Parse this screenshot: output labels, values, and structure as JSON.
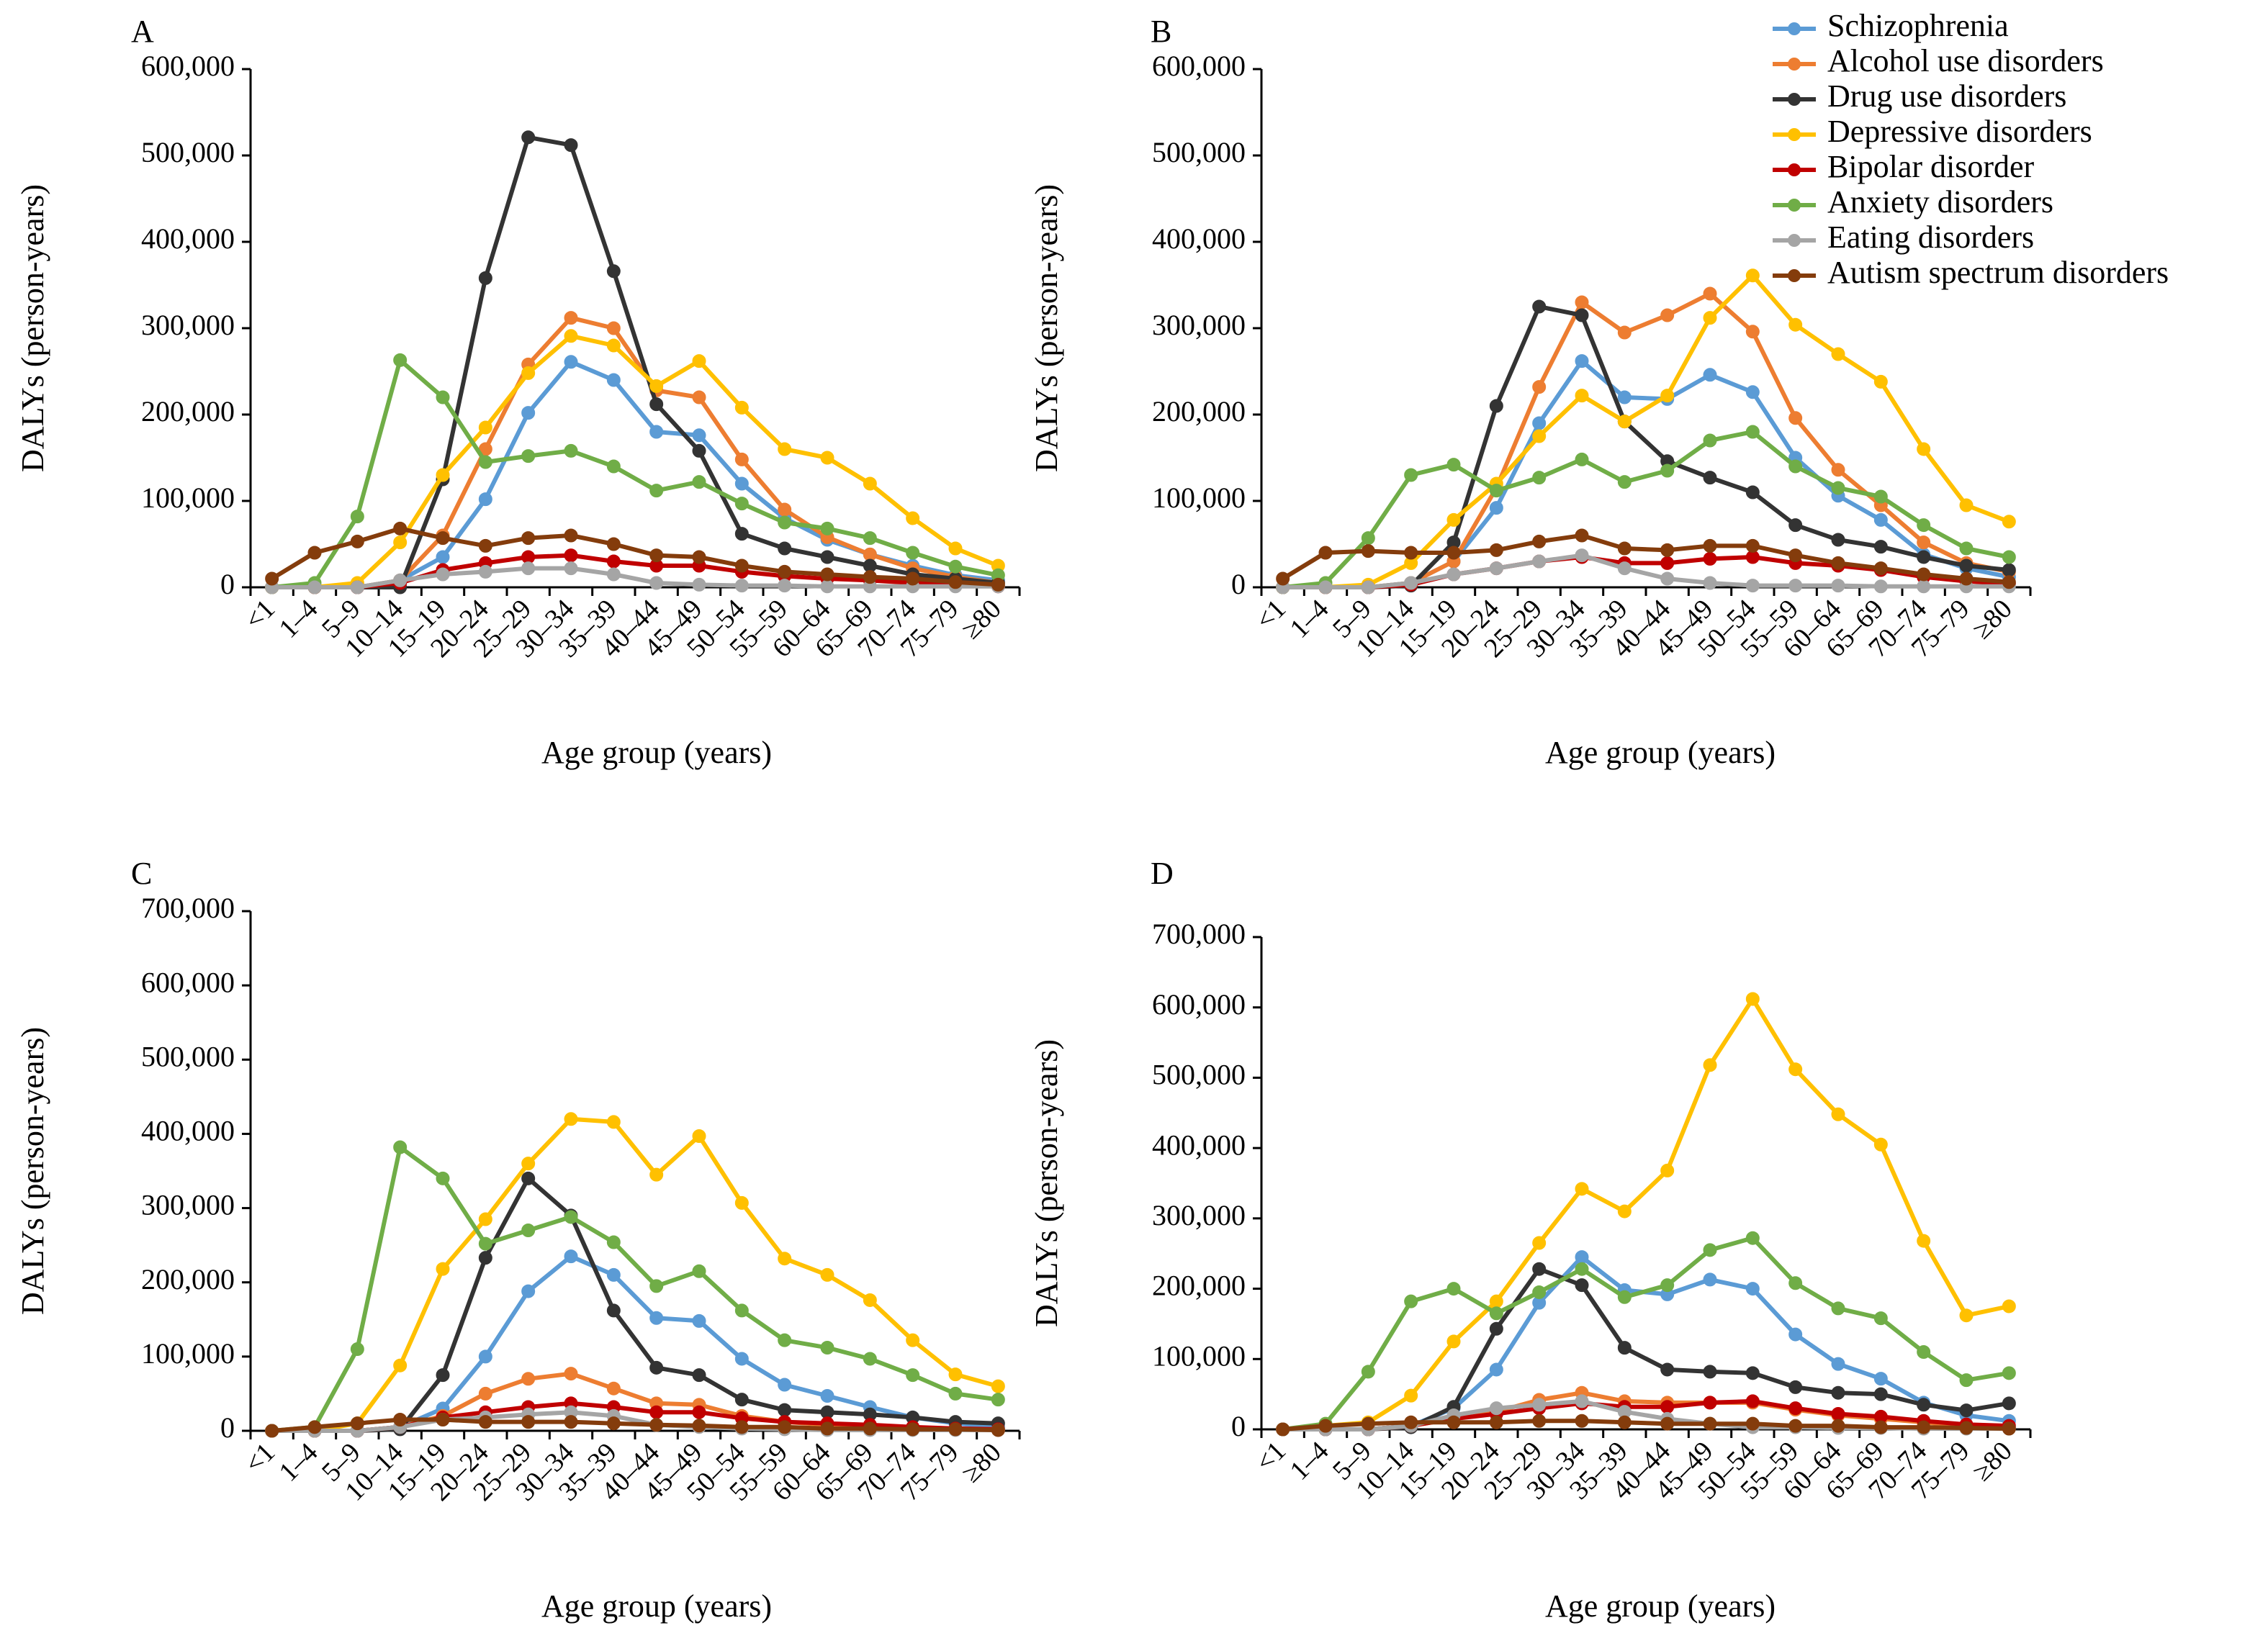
{
  "chart_data": [
    {
      "type": "line",
      "panel_label": "A",
      "xlabel": "Age group (years)",
      "ylabel": "DALYs (person-years)",
      "ylim": [
        0,
        600000
      ],
      "yticks": [
        0,
        100000,
        200000,
        300000,
        400000,
        500000,
        600000
      ],
      "ytick_labels": [
        "0",
        "100,000",
        "200,000",
        "300,000",
        "400,000",
        "500,000",
        "600,000"
      ],
      "categories": [
        "<1",
        "1–4",
        "5–9",
        "10–14",
        "15–19",
        "20–24",
        "25–29",
        "30–34",
        "35–39",
        "40–44",
        "45–49",
        "50–54",
        "55–59",
        "60–64",
        "65–69",
        "70–74",
        "75–79",
        "≥80"
      ],
      "grid": false,
      "series": [
        {
          "name": "Schizophrenia",
          "color": "#5b9bd5",
          "values": [
            0,
            0,
            0,
            8000,
            35000,
            102000,
            202000,
            261000,
            240000,
            180000,
            176000,
            120000,
            80000,
            55000,
            38000,
            25000,
            14000,
            8000
          ]
        },
        {
          "name": "Alcohol use disorders",
          "color": "#ed7d31",
          "values": [
            0,
            0,
            0,
            8000,
            60000,
            160000,
            258000,
            312000,
            300000,
            228000,
            220000,
            148000,
            90000,
            58000,
            38000,
            22000,
            12000,
            5000
          ]
        },
        {
          "name": "Drug use disorders",
          "color": "#333333",
          "values": [
            0,
            0,
            0,
            0,
            125000,
            358000,
            521000,
            512000,
            366000,
            212000,
            158000,
            62000,
            45000,
            35000,
            25000,
            15000,
            10000,
            5000
          ]
        },
        {
          "name": "Depressive disorders",
          "color": "#ffc000",
          "values": [
            0,
            0,
            5000,
            52000,
            130000,
            185000,
            248000,
            291000,
            280000,
            233000,
            262000,
            208000,
            160000,
            150000,
            120000,
            80000,
            45000,
            25000
          ]
        },
        {
          "name": "Bipolar disorder",
          "color": "#c00000",
          "values": [
            0,
            0,
            0,
            5000,
            20000,
            28000,
            35000,
            37000,
            30000,
            25000,
            25000,
            18000,
            13000,
            10000,
            8000,
            5000,
            3000,
            1000
          ]
        },
        {
          "name": "Anxiety disorders",
          "color": "#70ad47",
          "values": [
            0,
            5000,
            82000,
            263000,
            220000,
            145000,
            152000,
            158000,
            140000,
            112000,
            122000,
            97000,
            75000,
            68000,
            57000,
            40000,
            24000,
            14000
          ]
        },
        {
          "name": "Eating disorders",
          "color": "#a5a5a5",
          "values": [
            0,
            0,
            0,
            8000,
            15000,
            18000,
            22000,
            22000,
            15000,
            5000,
            3000,
            2000,
            2000,
            1000,
            1000,
            1000,
            1000,
            1000
          ]
        },
        {
          "name": "Autism spectrum disorders",
          "color": "#843c0c",
          "values": [
            10000,
            40000,
            53000,
            68000,
            57000,
            48000,
            57000,
            60000,
            50000,
            37000,
            35000,
            25000,
            18000,
            15000,
            12000,
            10000,
            6000,
            3000
          ]
        }
      ]
    },
    {
      "type": "line",
      "panel_label": "B",
      "xlabel": "Age group (years)",
      "ylabel": "DALYs (person-years)",
      "ylim": [
        0,
        600000
      ],
      "yticks": [
        0,
        100000,
        200000,
        300000,
        400000,
        500000,
        600000
      ],
      "ytick_labels": [
        "0",
        "100,000",
        "200,000",
        "300,000",
        "400,000",
        "500,000",
        "600,000"
      ],
      "categories": [
        "<1",
        "1–4",
        "5–9",
        "10–14",
        "15–19",
        "20–24",
        "25–29",
        "30–34",
        "35–39",
        "40–44",
        "45–49",
        "50–54",
        "55–59",
        "60–64",
        "65–69",
        "70–74",
        "75–79",
        "≥80"
      ],
      "grid": false,
      "series": [
        {
          "name": "Schizophrenia",
          "color": "#5b9bd5",
          "values": [
            0,
            0,
            0,
            5000,
            30000,
            92000,
            190000,
            262000,
            220000,
            218000,
            246000,
            226000,
            150000,
            106000,
            78000,
            38000,
            22000,
            12000
          ]
        },
        {
          "name": "Alcohol use disorders",
          "color": "#ed7d31",
          "values": [
            0,
            0,
            0,
            5000,
            30000,
            115000,
            232000,
            330000,
            295000,
            315000,
            340000,
            296000,
            196000,
            136000,
            95000,
            52000,
            28000,
            18000
          ]
        },
        {
          "name": "Drug use disorders",
          "color": "#333333",
          "values": [
            0,
            0,
            0,
            2000,
            52000,
            210000,
            325000,
            315000,
            192000,
            146000,
            127000,
            110000,
            72000,
            55000,
            47000,
            35000,
            25000,
            20000
          ]
        },
        {
          "name": "Depressive disorders",
          "color": "#ffc000",
          "values": [
            0,
            0,
            3000,
            28000,
            78000,
            120000,
            175000,
            222000,
            192000,
            222000,
            312000,
            361000,
            304000,
            270000,
            238000,
            160000,
            95000,
            76000
          ]
        },
        {
          "name": "Bipolar disorder",
          "color": "#c00000",
          "values": [
            0,
            0,
            0,
            3000,
            15000,
            22000,
            30000,
            35000,
            28000,
            28000,
            33000,
            35000,
            28000,
            25000,
            20000,
            12000,
            7000,
            4000
          ]
        },
        {
          "name": "Anxiety disorders",
          "color": "#70ad47",
          "values": [
            0,
            5000,
            57000,
            130000,
            142000,
            112000,
            127000,
            148000,
            122000,
            135000,
            170000,
            180000,
            140000,
            115000,
            105000,
            72000,
            45000,
            35000
          ]
        },
        {
          "name": "Eating disorders",
          "color": "#a5a5a5",
          "values": [
            0,
            0,
            0,
            5000,
            15000,
            22000,
            30000,
            37000,
            22000,
            10000,
            5000,
            2000,
            2000,
            2000,
            1000,
            1000,
            1000,
            1000
          ]
        },
        {
          "name": "Autism spectrum disorders",
          "color": "#843c0c",
          "values": [
            10000,
            40000,
            42000,
            40000,
            40000,
            43000,
            53000,
            60000,
            45000,
            43000,
            48000,
            48000,
            37000,
            28000,
            22000,
            15000,
            10000,
            6000
          ]
        }
      ]
    },
    {
      "type": "line",
      "panel_label": "C",
      "xlabel": "Age group (years)",
      "ylabel": "DALYs (person-years)",
      "ylim": [
        0,
        700000
      ],
      "yticks": [
        0,
        100000,
        200000,
        300000,
        400000,
        500000,
        600000,
        700000
      ],
      "ytick_labels": [
        "0",
        "100,000",
        "200,000",
        "300,000",
        "400,000",
        "500,000",
        "600,000",
        "700,000"
      ],
      "categories": [
        "<1",
        "1–4",
        "5–9",
        "10–14",
        "15–19",
        "20–24",
        "25–29",
        "30–34",
        "35–39",
        "40–44",
        "45–49",
        "50–54",
        "55–59",
        "60–64",
        "65–69",
        "70–74",
        "75–79",
        "≥80"
      ],
      "grid": false,
      "series": [
        {
          "name": "Schizophrenia",
          "color": "#5b9bd5",
          "values": [
            0,
            0,
            0,
            5000,
            30000,
            100000,
            188000,
            235000,
            210000,
            152000,
            148000,
            97000,
            62000,
            47000,
            32000,
            18000,
            10000,
            5000
          ]
        },
        {
          "name": "Alcohol use disorders",
          "color": "#ed7d31",
          "values": [
            0,
            0,
            0,
            5000,
            20000,
            50000,
            70000,
            77000,
            57000,
            37000,
            35000,
            20000,
            12000,
            8000,
            5000,
            3000,
            2000,
            1000
          ]
        },
        {
          "name": "Drug use disorders",
          "color": "#333333",
          "values": [
            0,
            0,
            0,
            2000,
            75000,
            233000,
            340000,
            290000,
            162000,
            85000,
            75000,
            42000,
            28000,
            25000,
            22000,
            18000,
            12000,
            10000
          ]
        },
        {
          "name": "Depressive disorders",
          "color": "#ffc000",
          "values": [
            0,
            0,
            10000,
            88000,
            218000,
            285000,
            360000,
            420000,
            416000,
            345000,
            397000,
            307000,
            232000,
            210000,
            176000,
            122000,
            76000,
            60000
          ]
        },
        {
          "name": "Bipolar disorder",
          "color": "#c00000",
          "values": [
            0,
            0,
            0,
            5000,
            18000,
            25000,
            32000,
            37000,
            32000,
            25000,
            25000,
            17000,
            12000,
            10000,
            8000,
            5000,
            3000,
            2000
          ]
        },
        {
          "name": "Anxiety disorders",
          "color": "#70ad47",
          "values": [
            0,
            5000,
            110000,
            382000,
            340000,
            252000,
            270000,
            288000,
            254000,
            195000,
            215000,
            162000,
            122000,
            112000,
            97000,
            75000,
            50000,
            42000
          ]
        },
        {
          "name": "Eating disorders",
          "color": "#a5a5a5",
          "values": [
            0,
            0,
            0,
            5000,
            15000,
            18000,
            22000,
            25000,
            20000,
            8000,
            5000,
            3000,
            2000,
            1000,
            1000,
            1000,
            1000,
            1000
          ]
        },
        {
          "name": "Autism spectrum disorders",
          "color": "#843c0c",
          "values": [
            0,
            5000,
            10000,
            15000,
            15000,
            12000,
            12000,
            12000,
            10000,
            8000,
            7000,
            5000,
            5000,
            3000,
            3000,
            2000,
            2000,
            1000
          ]
        }
      ]
    },
    {
      "type": "line",
      "panel_label": "D",
      "xlabel": "Age group (years)",
      "ylabel": "DALYs (person-years)",
      "ylim": [
        0,
        700000
      ],
      "yticks": [
        0,
        100000,
        200000,
        300000,
        400000,
        500000,
        600000,
        700000
      ],
      "ytick_labels": [
        "0",
        "100,000",
        "200,000",
        "300,000",
        "400,000",
        "500,000",
        "600,000",
        "700,000"
      ],
      "categories": [
        "<1",
        "1–4",
        "5–9",
        "10–14",
        "15–19",
        "20–24",
        "25–29",
        "30–34",
        "35–39",
        "40–44",
        "45–49",
        "50–54",
        "55–59",
        "60–64",
        "65–69",
        "70–74",
        "75–79",
        "≥80"
      ],
      "grid": false,
      "series": [
        {
          "name": "Schizophrenia",
          "color": "#5b9bd5",
          "values": [
            0,
            0,
            0,
            5000,
            30000,
            85000,
            180000,
            245000,
            198000,
            192000,
            213000,
            200000,
            135000,
            93000,
            72000,
            38000,
            20000,
            12000
          ]
        },
        {
          "name": "Alcohol use disorders",
          "color": "#ed7d31",
          "values": [
            0,
            0,
            0,
            5000,
            15000,
            25000,
            42000,
            52000,
            40000,
            38000,
            38000,
            38000,
            28000,
            20000,
            15000,
            10000,
            5000,
            3000
          ]
        },
        {
          "name": "Drug use disorders",
          "color": "#333333",
          "values": [
            0,
            0,
            0,
            3000,
            32000,
            143000,
            228000,
            205000,
            116000,
            85000,
            82000,
            80000,
            60000,
            52000,
            50000,
            35000,
            27000,
            37000
          ]
        },
        {
          "name": "Depressive disorders",
          "color": "#ffc000",
          "values": [
            0,
            5000,
            10000,
            48000,
            125000,
            182000,
            265000,
            342000,
            310000,
            368000,
            518000,
            612000,
            512000,
            448000,
            405000,
            268000,
            162000,
            175000
          ]
        },
        {
          "name": "Bipolar disorder",
          "color": "#c00000",
          "values": [
            0,
            0,
            0,
            5000,
            15000,
            22000,
            30000,
            37000,
            32000,
            32000,
            38000,
            40000,
            30000,
            22000,
            18000,
            12000,
            7000,
            5000
          ]
        },
        {
          "name": "Anxiety disorders",
          "color": "#70ad47",
          "values": [
            0,
            8000,
            82000,
            182000,
            200000,
            165000,
            195000,
            228000,
            188000,
            205000,
            255000,
            272000,
            208000,
            172000,
            158000,
            110000,
            70000,
            80000
          ]
        },
        {
          "name": "Eating disorders",
          "color": "#a5a5a5",
          "values": [
            0,
            0,
            0,
            5000,
            20000,
            30000,
            35000,
            40000,
            25000,
            15000,
            8000,
            3000,
            3000,
            2000,
            2000,
            1000,
            1000,
            1000
          ]
        },
        {
          "name": "Autism spectrum disorders",
          "color": "#843c0c",
          "values": [
            0,
            5000,
            8000,
            10000,
            10000,
            10000,
            12000,
            12000,
            10000,
            8000,
            8000,
            8000,
            5000,
            5000,
            3000,
            3000,
            2000,
            1000
          ]
        }
      ]
    }
  ],
  "legend": {
    "placement": "top-right",
    "items": [
      {
        "label": "Schizophrenia",
        "color": "#5b9bd5"
      },
      {
        "label": "Alcohol use disorders",
        "color": "#ed7d31"
      },
      {
        "label": "Drug use disorders",
        "color": "#333333"
      },
      {
        "label": "Depressive disorders",
        "color": "#ffc000"
      },
      {
        "label": "Bipolar disorder",
        "color": "#c00000"
      },
      {
        "label": "Anxiety disorders",
        "color": "#70ad47"
      },
      {
        "label": "Eating disorders",
        "color": "#a5a5a5"
      },
      {
        "label": "Autism spectrum disorders",
        "color": "#843c0c"
      }
    ]
  }
}
